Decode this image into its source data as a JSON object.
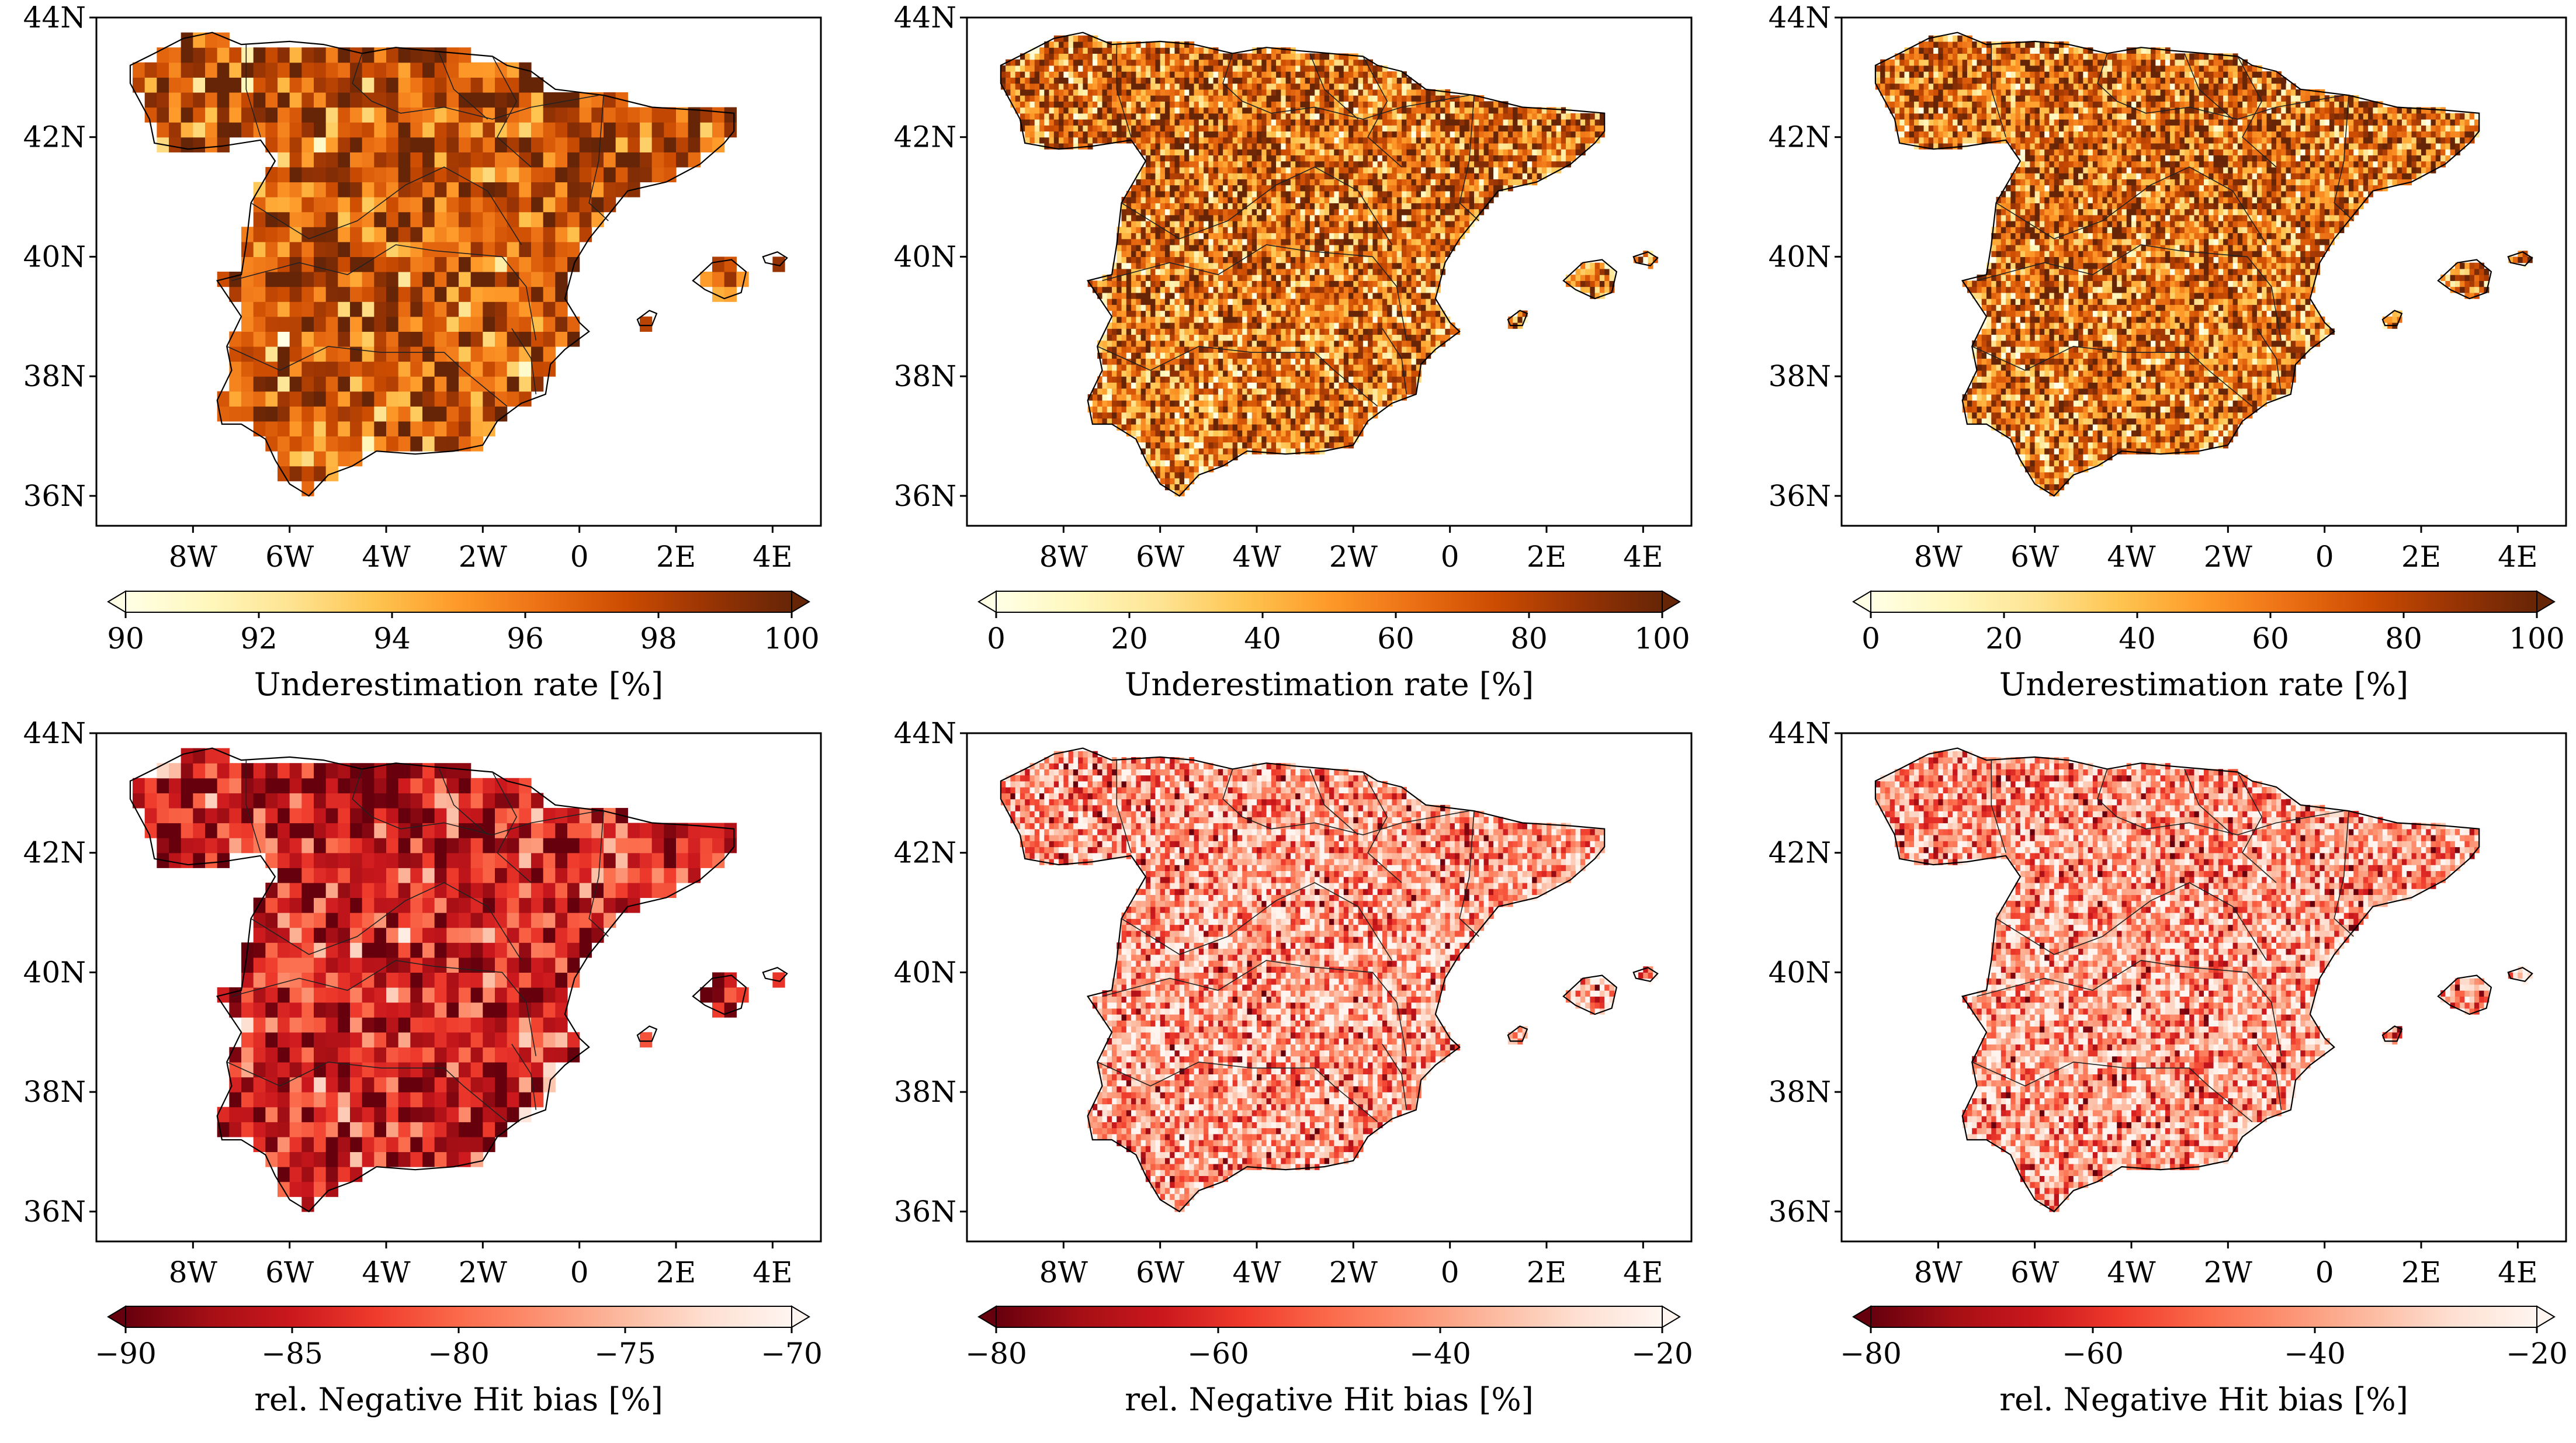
{
  "figure": {
    "background": "#ffffff",
    "panels": [
      {
        "id": "top-left",
        "colormap": "YlOrBr",
        "vmin": 90,
        "vmax": 100,
        "colorbar": {
          "ticks": [
            "90",
            "92",
            "94",
            "96",
            "98",
            "100"
          ],
          "tick_values": [
            90,
            92,
            94,
            96,
            98,
            100
          ],
          "label": "Underestimation rate [%]",
          "extend": "both"
        },
        "grid": "coarse",
        "typical_value": 97.2,
        "spread": 2.2
      },
      {
        "id": "top-center",
        "colormap": "YlOrBr",
        "vmin": 0,
        "vmax": 100,
        "colorbar": {
          "ticks": [
            "0",
            "20",
            "40",
            "60",
            "80",
            "100"
          ],
          "tick_values": [
            0,
            20,
            40,
            60,
            80,
            100
          ],
          "label": "Underestimation rate [%]",
          "extend": "both"
        },
        "grid": "fine",
        "typical_value": 62,
        "spread": 30
      },
      {
        "id": "top-right",
        "colormap": "YlOrBr",
        "vmin": 0,
        "vmax": 100,
        "colorbar": {
          "ticks": [
            "0",
            "20",
            "40",
            "60",
            "80",
            "100"
          ],
          "tick_values": [
            0,
            20,
            40,
            60,
            80,
            100
          ],
          "label": "Underestimation rate [%]",
          "extend": "both"
        },
        "grid": "fine",
        "typical_value": 62,
        "spread": 30
      },
      {
        "id": "bottom-left",
        "colormap": "Reds_r",
        "vmin": -90,
        "vmax": -70,
        "colorbar": {
          "ticks": [
            "−90",
            "−85",
            "−80",
            "−75",
            "−70"
          ],
          "tick_values": [
            -90,
            -85,
            -80,
            -75,
            -70
          ],
          "label": "rel. Negative Hit bias [%]",
          "extend": "both"
        },
        "grid": "coarse",
        "typical_value": -84,
        "spread": 5
      },
      {
        "id": "bottom-center",
        "colormap": "Reds_r",
        "vmin": -80,
        "vmax": -20,
        "colorbar": {
          "ticks": [
            "−80",
            "−60",
            "−40",
            "−20"
          ],
          "tick_values": [
            -80,
            -60,
            -40,
            -20
          ],
          "label": "rel. Negative Hit bias [%]",
          "extend": "both"
        },
        "grid": "fine",
        "typical_value": -38,
        "spread": 17
      },
      {
        "id": "bottom-right",
        "colormap": "Reds_r",
        "vmin": -80,
        "vmax": -20,
        "colorbar": {
          "ticks": [
            "−80",
            "−60",
            "−40",
            "−20"
          ],
          "tick_values": [
            -80,
            -60,
            -40,
            -20
          ],
          "label": "rel. Negative Hit bias [%]",
          "extend": "both"
        },
        "grid": "fine",
        "typical_value": -38,
        "spread": 17
      }
    ],
    "lon_ticks": [
      "8W",
      "6W",
      "4W",
      "2W",
      "0",
      "2E",
      "4E"
    ],
    "lon_values": [
      -8,
      -6,
      -4,
      -2,
      0,
      2,
      4
    ],
    "lat_ticks": [
      "44N",
      "42N",
      "40N",
      "38N",
      "36N"
    ],
    "lat_values": [
      44,
      42,
      40,
      38,
      36
    ],
    "extent": {
      "lon_min": -10.0,
      "lon_max": 5.0,
      "lat_min": 35.5,
      "lat_max": 44.0
    }
  },
  "colormaps": {
    "YlOrBr": [
      "#ffffe5",
      "#fff7bc",
      "#fee391",
      "#fec44f",
      "#fe9929",
      "#ec7014",
      "#cc4c02",
      "#993404",
      "#662506"
    ],
    "Reds_r": [
      "#67000d",
      "#a50f15",
      "#cb181d",
      "#ef3b2c",
      "#fb6a4a",
      "#fc9272",
      "#fcbba1",
      "#fee0d2",
      "#fff5f0"
    ]
  },
  "geography": {
    "mainland": [
      [
        -9.3,
        43.2
      ],
      [
        -8.8,
        43.4
      ],
      [
        -8.2,
        43.65
      ],
      [
        -7.6,
        43.75
      ],
      [
        -7.0,
        43.55
      ],
      [
        -6.0,
        43.6
      ],
      [
        -5.3,
        43.55
      ],
      [
        -4.5,
        43.4
      ],
      [
        -3.8,
        43.5
      ],
      [
        -3.2,
        43.45
      ],
      [
        -2.5,
        43.4
      ],
      [
        -1.8,
        43.35
      ],
      [
        -1.5,
        43.2
      ],
      [
        -1.0,
        43.1
      ],
      [
        -0.5,
        42.8
      ],
      [
        0.5,
        42.7
      ],
      [
        1.5,
        42.5
      ],
      [
        2.5,
        42.45
      ],
      [
        3.2,
        42.4
      ],
      [
        3.2,
        42.1
      ],
      [
        3.0,
        41.9
      ],
      [
        2.5,
        41.55
      ],
      [
        1.8,
        41.25
      ],
      [
        1.0,
        41.1
      ],
      [
        0.7,
        40.8
      ],
      [
        0.2,
        40.3
      ],
      [
        -0.1,
        39.9
      ],
      [
        -0.3,
        39.3
      ],
      [
        0.0,
        38.9
      ],
      [
        0.2,
        38.75
      ],
      [
        -0.3,
        38.45
      ],
      [
        -0.6,
        38.2
      ],
      [
        -0.7,
        37.7
      ],
      [
        -1.2,
        37.55
      ],
      [
        -1.7,
        37.25
      ],
      [
        -2.0,
        36.85
      ],
      [
        -2.6,
        36.75
      ],
      [
        -3.4,
        36.7
      ],
      [
        -4.2,
        36.75
      ],
      [
        -4.7,
        36.5
      ],
      [
        -5.2,
        36.35
      ],
      [
        -5.6,
        36.0
      ],
      [
        -6.0,
        36.2
      ],
      [
        -6.3,
        36.6
      ],
      [
        -6.5,
        36.95
      ],
      [
        -7.0,
        37.2
      ],
      [
        -7.4,
        37.2
      ],
      [
        -7.5,
        37.6
      ],
      [
        -7.2,
        38.1
      ],
      [
        -7.3,
        38.5
      ],
      [
        -7.0,
        39.0
      ],
      [
        -7.5,
        39.6
      ],
      [
        -7.0,
        39.7
      ],
      [
        -6.9,
        40.2
      ],
      [
        -6.8,
        40.9
      ],
      [
        -6.3,
        41.6
      ],
      [
        -6.6,
        41.95
      ],
      [
        -7.4,
        41.85
      ],
      [
        -8.1,
        41.8
      ],
      [
        -8.8,
        41.9
      ],
      [
        -8.9,
        42.3
      ],
      [
        -9.1,
        42.6
      ],
      [
        -9.3,
        42.9
      ]
    ],
    "mallorca": [
      [
        2.35,
        39.6
      ],
      [
        2.75,
        39.9
      ],
      [
        3.15,
        39.95
      ],
      [
        3.45,
        39.75
      ],
      [
        3.35,
        39.4
      ],
      [
        3.0,
        39.3
      ],
      [
        2.6,
        39.45
      ]
    ],
    "menorca": [
      [
        3.8,
        40.0
      ],
      [
        4.1,
        40.08
      ],
      [
        4.3,
        39.98
      ],
      [
        4.15,
        39.85
      ],
      [
        3.85,
        39.9
      ]
    ],
    "ibiza": [
      [
        1.2,
        38.95
      ],
      [
        1.45,
        39.1
      ],
      [
        1.6,
        39.05
      ],
      [
        1.5,
        38.85
      ],
      [
        1.25,
        38.85
      ]
    ],
    "regions": [
      [
        [
          -6.9,
          43.55
        ],
        [
          -6.9,
          42.8
        ],
        [
          -6.6,
          42.0
        ]
      ],
      [
        [
          -4.5,
          43.4
        ],
        [
          -4.7,
          42.9
        ],
        [
          -4.3,
          42.6
        ],
        [
          -3.7,
          42.4
        ],
        [
          -2.8,
          42.5
        ],
        [
          -1.8,
          42.3
        ],
        [
          -1.0,
          42.5
        ],
        [
          0.4,
          42.7
        ]
      ],
      [
        [
          -2.9,
          43.4
        ],
        [
          -2.6,
          42.8
        ],
        [
          -1.9,
          42.3
        ]
      ],
      [
        [
          -1.8,
          43.35
        ],
        [
          -1.3,
          42.6
        ],
        [
          -1.7,
          42.0
        ],
        [
          -1.0,
          41.5
        ]
      ],
      [
        [
          0.5,
          42.7
        ],
        [
          0.4,
          41.6
        ],
        [
          0.2,
          40.9
        ],
        [
          0.6,
          40.6
        ]
      ],
      [
        [
          -6.8,
          40.9
        ],
        [
          -5.6,
          40.3
        ],
        [
          -4.6,
          40.6
        ],
        [
          -3.6,
          41.2
        ],
        [
          -2.8,
          41.5
        ],
        [
          -1.9,
          41.1
        ],
        [
          -1.2,
          40.2
        ]
      ],
      [
        [
          -7.2,
          39.6
        ],
        [
          -5.8,
          39.9
        ],
        [
          -4.8,
          39.7
        ],
        [
          -3.8,
          40.2
        ],
        [
          -3.0,
          40.1
        ],
        [
          -1.6,
          40.0
        ],
        [
          -1.1,
          39.5
        ],
        [
          -0.9,
          38.6
        ]
      ],
      [
        [
          -7.3,
          38.5
        ],
        [
          -6.2,
          38.1
        ],
        [
          -5.2,
          38.5
        ],
        [
          -4.1,
          38.4
        ],
        [
          -2.8,
          38.4
        ],
        [
          -2.4,
          38.1
        ],
        [
          -1.5,
          37.5
        ]
      ],
      [
        [
          -1.4,
          38.8
        ],
        [
          -1.0,
          38.3
        ],
        [
          -0.9,
          37.7
        ]
      ]
    ]
  }
}
